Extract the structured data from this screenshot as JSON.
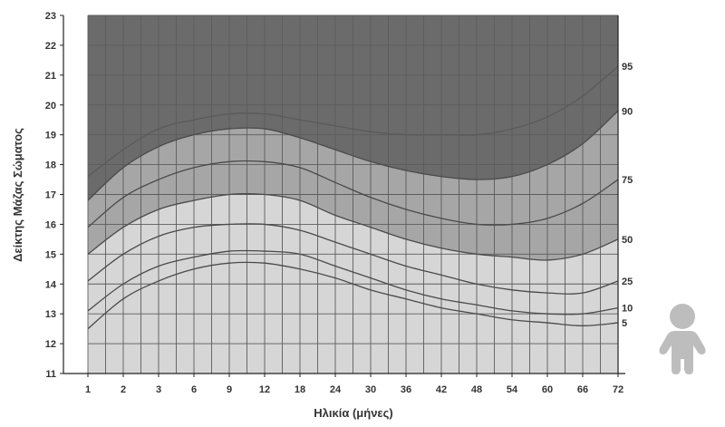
{
  "chart_data": {
    "type": "area",
    "xlabel": "Ηλικία (μήνες)",
    "ylabel": "Δείκτης Μάζας Σώματος",
    "ylim": [
      11,
      23
    ],
    "yticks": [
      11,
      12,
      13,
      14,
      15,
      16,
      17,
      18,
      19,
      20,
      21,
      22,
      23
    ],
    "x_categories": [
      "1",
      "2",
      "3",
      "6",
      "9",
      "12",
      "18",
      "24",
      "30",
      "36",
      "42",
      "48",
      "54",
      "60",
      "66",
      "72"
    ],
    "grid": true,
    "colors": {
      "band_above_90": "#6b6b6b",
      "band_50_90": "#a6a6a6",
      "band_below_50": "#d6d6d6",
      "curve_lines": "#4a4a4a",
      "icon": "#bdbdbd"
    },
    "series": [
      {
        "name": "95",
        "values": [
          17.6,
          18.5,
          19.2,
          19.5,
          19.7,
          19.7,
          19.5,
          19.3,
          19.1,
          19.0,
          19.0,
          19.0,
          19.2,
          19.6,
          20.3,
          21.3
        ]
      },
      {
        "name": "90",
        "values": [
          16.8,
          17.9,
          18.6,
          19.0,
          19.2,
          19.2,
          18.9,
          18.5,
          18.1,
          17.8,
          17.6,
          17.5,
          17.6,
          18.0,
          18.7,
          19.8
        ]
      },
      {
        "name": "75",
        "values": [
          15.9,
          16.9,
          17.5,
          17.9,
          18.1,
          18.1,
          17.9,
          17.4,
          16.9,
          16.5,
          16.2,
          16.0,
          16.0,
          16.2,
          16.7,
          17.5
        ]
      },
      {
        "name": "50",
        "values": [
          15.0,
          15.9,
          16.5,
          16.8,
          17.0,
          17.0,
          16.8,
          16.3,
          15.9,
          15.5,
          15.2,
          15.0,
          14.9,
          14.8,
          15.0,
          15.5
        ]
      },
      {
        "name": "25",
        "values": [
          14.1,
          15.0,
          15.6,
          15.9,
          16.0,
          16.0,
          15.8,
          15.4,
          15.0,
          14.6,
          14.3,
          14.0,
          13.8,
          13.7,
          13.7,
          14.1
        ]
      },
      {
        "name": "10",
        "values": [
          13.1,
          14.0,
          14.6,
          14.9,
          15.1,
          15.1,
          15.0,
          14.6,
          14.2,
          13.8,
          13.5,
          13.3,
          13.1,
          13.0,
          13.0,
          13.2
        ]
      },
      {
        "name": "5",
        "values": [
          12.5,
          13.5,
          14.1,
          14.5,
          14.7,
          14.7,
          14.5,
          14.2,
          13.8,
          13.5,
          13.2,
          13.0,
          12.8,
          12.7,
          12.6,
          12.7
        ]
      }
    ],
    "percentile_labels": [
      "95",
      "90",
      "75",
      "50",
      "25",
      "10",
      "5"
    ]
  },
  "icon": {
    "name": "child-silhouette-icon"
  }
}
